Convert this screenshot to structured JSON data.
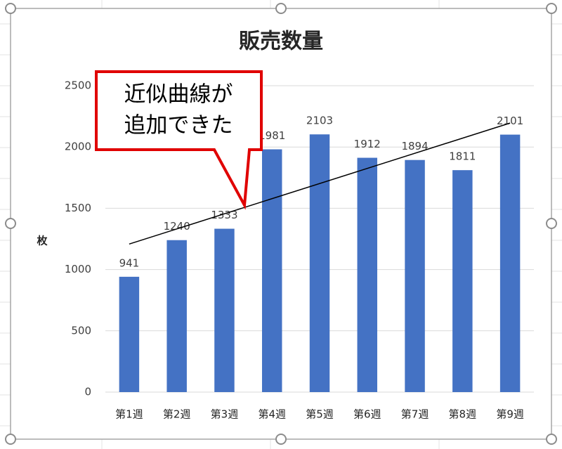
{
  "chart_data": {
    "type": "bar",
    "title": "販売数量",
    "y_label": "枚",
    "categories": [
      "第1週",
      "第2週",
      "第3週",
      "第4週",
      "第5週",
      "第6週",
      "第7週",
      "第8週",
      "第9週"
    ],
    "values": [
      941,
      1240,
      1333,
      1981,
      2103,
      1912,
      1894,
      1811,
      2101
    ],
    "color": "#4472c4",
    "ylim": [
      0,
      2500
    ],
    "yticks": [
      0,
      500,
      1000,
      1500,
      2000,
      2500
    ],
    "grid": true,
    "trendline": "linear",
    "annotation": [
      "近似曲線が",
      "追加できた"
    ]
  }
}
